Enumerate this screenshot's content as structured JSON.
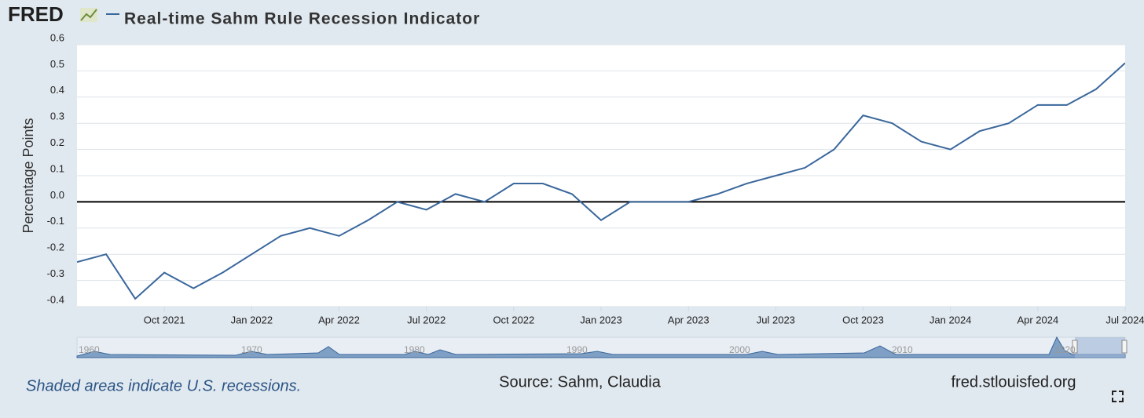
{
  "chart_data": {
    "type": "line",
    "logo": "FRED",
    "title": "Real-time Sahm Rule Recession Indicator",
    "y_label": "Percentage Points",
    "x": [
      "2021-07",
      "2021-08",
      "2021-09",
      "2021-10",
      "2021-11",
      "2021-12",
      "2022-01",
      "2022-02",
      "2022-03",
      "2022-04",
      "2022-05",
      "2022-06",
      "2022-07",
      "2022-08",
      "2022-09",
      "2022-10",
      "2022-11",
      "2022-12",
      "2023-01",
      "2023-02",
      "2023-03",
      "2023-04",
      "2023-05",
      "2023-06",
      "2023-07",
      "2023-08",
      "2023-09",
      "2023-10",
      "2023-11",
      "2023-12",
      "2024-01",
      "2024-02",
      "2024-03",
      "2024-04",
      "2024-05",
      "2024-06",
      "2024-07"
    ],
    "series": [
      {
        "name": "Real-time Sahm Rule Recession Indicator",
        "color": "#3a679c",
        "values": [
          -0.23,
          -0.2,
          -0.37,
          -0.27,
          -0.33,
          -0.27,
          -0.2,
          -0.13,
          -0.1,
          -0.13,
          -0.07,
          0.0,
          -0.03,
          0.03,
          0.0,
          0.07,
          0.07,
          0.03,
          -0.07,
          0.0,
          0.0,
          0.0,
          0.03,
          0.07,
          0.1,
          0.13,
          0.2,
          0.33,
          0.3,
          0.23,
          0.2,
          0.27,
          0.3,
          0.37,
          0.37,
          0.43,
          0.53
        ]
      }
    ],
    "xlim": [
      "2021-07",
      "2024-07"
    ],
    "xticks": [
      {
        "value": "2021-10",
        "label": "Oct 2021"
      },
      {
        "value": "2022-01",
        "label": "Jan 2022"
      },
      {
        "value": "2022-04",
        "label": "Apr 2022"
      },
      {
        "value": "2022-07",
        "label": "Jul 2022"
      },
      {
        "value": "2022-10",
        "label": "Oct 2022"
      },
      {
        "value": "2023-01",
        "label": "Jan 2023"
      },
      {
        "value": "2023-04",
        "label": "Apr 2023"
      },
      {
        "value": "2023-07",
        "label": "Jul 2023"
      },
      {
        "value": "2023-10",
        "label": "Oct 2023"
      },
      {
        "value": "2024-01",
        "label": "Jan 2024"
      },
      {
        "value": "2024-04",
        "label": "Apr 2024"
      },
      {
        "value": "2024-07",
        "label": "Jul 2024"
      }
    ],
    "ylim": [
      -0.4,
      0.6
    ],
    "yticks": [
      -0.4,
      -0.3,
      -0.2,
      -0.1,
      {
        "value": 0,
        "label": "0.0"
      },
      0.1,
      0.2,
      0.3,
      0.4,
      0.5,
      0.6
    ],
    "grid": true,
    "navigator_labels": [
      "1960",
      "1970",
      "1980",
      "1990",
      "2000",
      "2010",
      "2020"
    ],
    "note": "Shaded areas indicate U.S. recessions.",
    "source": "Source: Sahm, Claudia",
    "site": "fred.stlouisfed.org"
  }
}
